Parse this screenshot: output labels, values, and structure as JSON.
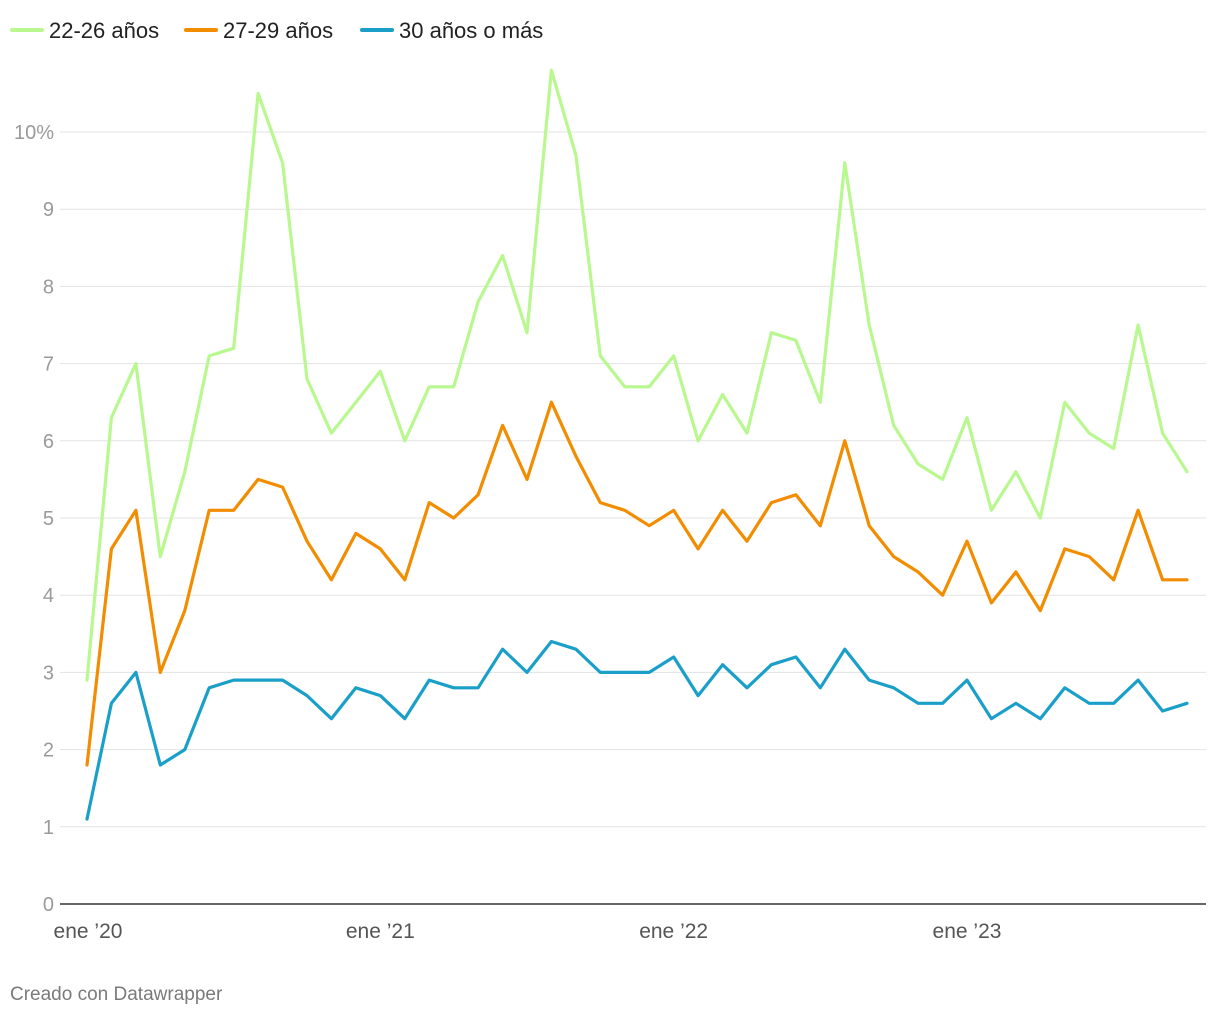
{
  "chart_data": {
    "type": "line",
    "title": "",
    "xlabel": "",
    "ylabel": "",
    "ylim": [
      0,
      11
    ],
    "grid": true,
    "legend_position": "top-left",
    "y_ticks": [
      {
        "value": 0,
        "label": "0"
      },
      {
        "value": 1,
        "label": "1"
      },
      {
        "value": 2,
        "label": "2"
      },
      {
        "value": 3,
        "label": "3"
      },
      {
        "value": 4,
        "label": "4"
      },
      {
        "value": 5,
        "label": "5"
      },
      {
        "value": 6,
        "label": "6"
      },
      {
        "value": 7,
        "label": "7"
      },
      {
        "value": 8,
        "label": "8"
      },
      {
        "value": 9,
        "label": "9"
      },
      {
        "value": 10,
        "label": "10%"
      }
    ],
    "x_ticks": [
      {
        "index": 0,
        "label": "ene ’20"
      },
      {
        "index": 12,
        "label": "ene ’21"
      },
      {
        "index": 24,
        "label": "ene ’22"
      },
      {
        "index": 36,
        "label": "ene ’23"
      }
    ],
    "x_count": 46,
    "series": [
      {
        "name": "22-26 años",
        "color": "#b9f78f",
        "values": [
          2.9,
          6.3,
          7.0,
          4.5,
          5.6,
          7.1,
          7.2,
          10.5,
          9.6,
          6.8,
          6.1,
          6.5,
          6.9,
          6.0,
          6.7,
          6.7,
          7.8,
          8.4,
          7.4,
          10.8,
          9.7,
          7.1,
          6.7,
          6.7,
          7.1,
          6.0,
          6.6,
          6.1,
          7.4,
          7.3,
          6.5,
          9.6,
          7.5,
          6.2,
          5.7,
          5.5,
          6.3,
          5.1,
          5.6,
          5.0,
          6.5,
          6.1,
          5.9,
          7.5,
          6.1,
          5.6
        ]
      },
      {
        "name": "27-29 años",
        "color": "#f28c00",
        "values": [
          1.8,
          4.6,
          5.1,
          3.0,
          3.8,
          5.1,
          5.1,
          5.5,
          5.4,
          4.7,
          4.2,
          4.8,
          4.6,
          4.2,
          5.2,
          5.0,
          5.3,
          6.2,
          5.5,
          6.5,
          5.8,
          5.2,
          5.1,
          4.9,
          5.1,
          4.6,
          5.1,
          4.7,
          5.2,
          5.3,
          4.9,
          6.0,
          4.9,
          4.5,
          4.3,
          4.0,
          4.7,
          3.9,
          4.3,
          3.8,
          4.6,
          4.5,
          4.2,
          5.1,
          4.2,
          4.2
        ]
      },
      {
        "name": "30 años o más",
        "color": "#1a9fc9",
        "values": [
          1.1,
          2.6,
          3.0,
          1.8,
          2.0,
          2.8,
          2.9,
          2.9,
          2.9,
          2.7,
          2.4,
          2.8,
          2.7,
          2.4,
          2.9,
          2.8,
          2.8,
          3.3,
          3.0,
          3.4,
          3.3,
          3.0,
          3.0,
          3.0,
          3.2,
          2.7,
          3.1,
          2.8,
          3.1,
          3.2,
          2.8,
          3.3,
          2.9,
          2.8,
          2.6,
          2.6,
          2.9,
          2.4,
          2.6,
          2.4,
          2.8,
          2.6,
          2.6,
          2.9,
          2.5,
          2.6
        ]
      }
    ]
  },
  "footer": {
    "credit": "Creado con Datawrapper"
  }
}
